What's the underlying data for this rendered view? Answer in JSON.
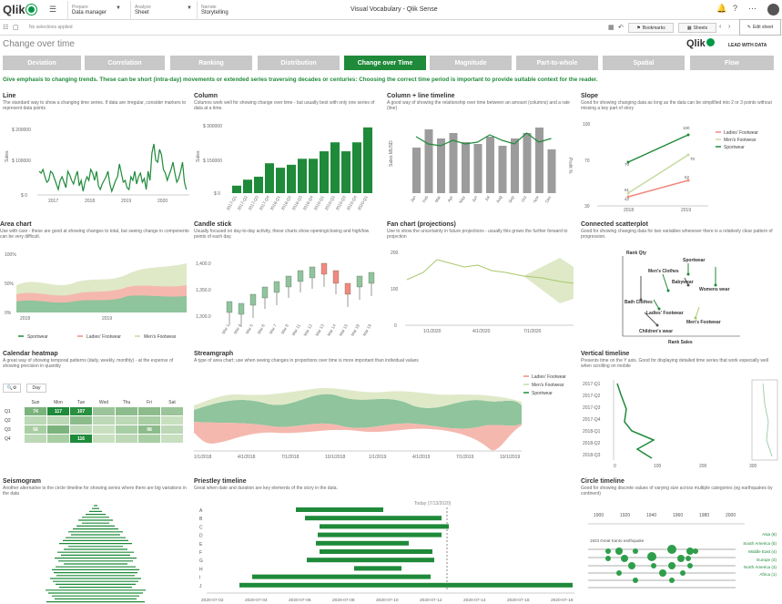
{
  "topbar": {
    "logo": "Qlik",
    "prepare_label": "Prepare",
    "prepare_value": "Data manager",
    "analyze_label": "Analyze",
    "analyze_value": "Sheet",
    "narrate_label": "Narrate",
    "narrate_value": "Storytelling",
    "app_title": "Visual Vocabulary - Qlik Sense"
  },
  "toolbar": {
    "no_selections": "No selections applied",
    "bookmarks": "Bookmarks",
    "sheets": "Sheets",
    "edit_sheet": "Edit sheet"
  },
  "page": {
    "title": "Change over time",
    "brand": "Qlik",
    "brand_tagline": "LEAD WITH DATA",
    "emphasis": "Give emphasis to changing trends. These can be short (intra-day) movements or extended series traversing decades or centuries: Choosing the correct time period is important to provide suitable context for the reader."
  },
  "tabs": [
    "Deviation",
    "Correlation",
    "Ranking",
    "Distribution",
    "Change over Time",
    "Magnitude",
    "Part-to-whole",
    "Spatial",
    "Flow"
  ],
  "active_tab": "Change over Time",
  "colors": {
    "green": "#1f8a3a",
    "red": "#f08a7e",
    "lightgreen": "#c5dba0"
  },
  "cards": {
    "line": {
      "title": "Line",
      "desc": "The standard way to show a changing time series. If data are irregular, consider markers to represent data points"
    },
    "column": {
      "title": "Column",
      "desc": "Columns work well for showing change over time - but usually best with only one series of data at a time."
    },
    "colline": {
      "title": "Column + line timeline",
      "desc": "A good way of showing the relationship over time between an amount (columns) and a rate (line)"
    },
    "slope": {
      "title": "Slope",
      "desc": "Good for showing changing data as long as the data can be simplified into 2 or 3 points without missing a key part of story"
    },
    "area": {
      "title": "Area chart",
      "desc": "Use with care - these are good at showing changes to total, but seeing change in components can be very difficult."
    },
    "candle": {
      "title": "Candle stick",
      "desc": "Usually focused on day-to-day activity, these charts show opening/closing and high/low points of each day."
    },
    "fan": {
      "title": "Fan chart (projections)",
      "desc": "Use to show the uncertainty in future projections - usually this grows the further forward to projection"
    },
    "scatter": {
      "title": "Connected scatterplot",
      "desc": "Good for showing changing data for two variables whenever there is a relatively clear pattern of progression."
    },
    "heatmap": {
      "title": "Calendar heatmap",
      "desc": "A great way of showing temporal patterns (daily, weekly, monthly) - at the expense of showing precision in quantity"
    },
    "stream": {
      "title": "Streamgraph",
      "desc": "A type of area chart; use when seeing changes in proportions over time is more important than individual values"
    },
    "vtimeline": {
      "title": "Vertical timeline",
      "desc": "Presents time on the Y axis. Good for displaying detailed time series that work especially well when scrolling on mobile"
    },
    "seismo": {
      "title": "Seismogram",
      "desc": "Another alternative to the circle timeline for showing series where there are big variations in the data"
    },
    "priestly": {
      "title": "Priestley timeline",
      "desc": "Great when date and duration are key elements of the story in the data."
    },
    "circle": {
      "title": "Circle timeline",
      "desc": "Good for showing discrete values of varying size across multiple categories (eg earthquakes by continent)"
    }
  },
  "axes": {
    "line_y": [
      "$ 200000",
      "$ 100000",
      "$ 0"
    ],
    "line_x": [
      "2017",
      "2018",
      "2019",
      "2020"
    ],
    "line_ylabel": "Sales",
    "column_y": [
      "$ 300000",
      "$ 150000",
      "$ 0"
    ],
    "column_ylabel": "Sales",
    "column_x": [
      "2017-Q1",
      "2017-Q2",
      "2017-Q3",
      "2017-Q4",
      "2018-Q1",
      "2018-Q2",
      "2018-Q3",
      "2018-Q4",
      "2019-Q1",
      "2019-Q2",
      "2019-Q3",
      "2019-Q4",
      "2020-Q1"
    ],
    "colline_ylabel": "Sales MUSD",
    "colline_y2label": "Profit %",
    "colline_x": [
      "Jan",
      "Feb",
      "Mar",
      "Apr",
      "May",
      "Jun",
      "Jul",
      "Aug",
      "Sep",
      "Oct",
      "Nov",
      "Dec"
    ],
    "slope_x": [
      "2018",
      "2019"
    ],
    "slope_y": [
      "100",
      "70",
      "30"
    ],
    "slope_legend": [
      "Ladies' Footwear",
      "Men's Footwear",
      "Sportwear"
    ],
    "slope_labels": [
      "100",
      "70",
      "70",
      "61",
      "52",
      "42"
    ],
    "area_y": [
      "100%",
      "50%",
      "0%"
    ],
    "area_x": [
      "2018",
      "2019"
    ],
    "area_legend": [
      "Sportwear",
      "Ladies' Footwear",
      "Men's Footwear"
    ],
    "candle_y": [
      "1,400.0",
      "1,350.0",
      "1,300.0"
    ],
    "candle_x": [
      "Mar 1",
      "Mar 4",
      "Mar 5",
      "Mar 6",
      "Mar 7",
      "Mar 8",
      "Mar 11",
      "Mar 12",
      "Mar 13",
      "Mar 14",
      "Mar 15",
      "Mar 18",
      "Mar 19"
    ],
    "fan_y": [
      "200",
      "100",
      "0"
    ],
    "fan_x": [
      "1/1/2020",
      "4/1/2020",
      "7/1/2020"
    ],
    "scatter_labels": [
      "Rank Qty",
      "Sportwear",
      "Men's Clothes",
      "Babywear",
      "Womens wear",
      "Bath Clothes",
      "Ladies' Footwear",
      "Men's Footwear",
      "Children's wear",
      "Rank Sales"
    ],
    "heat_days": [
      "Sun",
      "Mon",
      "Tue",
      "Wed",
      "Thu",
      "Fri",
      "Sat"
    ],
    "heat_rows": [
      "Q1",
      "Q2",
      "Q3",
      "Q4"
    ],
    "heat_vals": [
      "74",
      "117",
      "107",
      "56",
      "98",
      "38",
      "55",
      "116"
    ],
    "heat_day_btn": "Day",
    "stream_x": [
      "1/1/2018",
      "4/1/2018",
      "7/1/2018",
      "10/1/2018",
      "1/1/2019",
      "4/1/2019",
      "7/1/2019",
      "10/1/2019"
    ],
    "stream_legend": [
      "Ladies' Footwear",
      "Men's Footwear",
      "Sportwear"
    ],
    "vt_y": [
      "2017-Q1",
      "2017-Q2",
      "2017-Q3",
      "2017-Q4",
      "2018-Q1",
      "2018-Q2",
      "2018-Q3"
    ],
    "vt_x": [
      "0",
      "100",
      "200",
      "300"
    ],
    "priestly_rows": [
      "A",
      "B",
      "C",
      "D",
      "E",
      "F",
      "G",
      "H",
      "I",
      "J"
    ],
    "priestly_x": [
      "2020-07-02",
      "2020-07-04",
      "2020-07-06",
      "2020-07-08",
      "2020-07-10",
      "2020-07-12",
      "2020-07-14",
      "2020-07-16",
      "2020-07-18"
    ],
    "priestly_today": "Today (7/13/2020)",
    "circle_x": [
      "1900",
      "1920",
      "1940",
      "1960",
      "1980",
      "2000"
    ],
    "circle_note": "1923 Great Kanto earthquake",
    "circle_cats": [
      "Asia (8)",
      "South America (5)",
      "Middle East (4)",
      "Europe (3)",
      "North America (3)",
      "Africa (1)"
    ]
  }
}
